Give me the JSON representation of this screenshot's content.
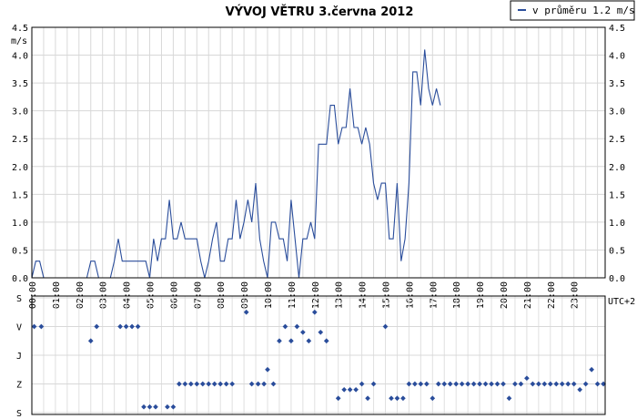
{
  "chart_data": [
    {
      "type": "line",
      "title": "VÝVOJ VĚTRU  3.června 2012",
      "ylabel": "m/s",
      "xlabel": "UTC+2",
      "ylim": [
        0,
        4.5
      ],
      "y_ticks": [
        "0.0",
        "0.5",
        "1.0",
        "1.5",
        "2.0",
        "2.5",
        "3.0",
        "3.5",
        "4.0",
        "4.5"
      ],
      "x_ticks": [
        "00:00",
        "01:00",
        "02:00",
        "03:00",
        "04:00",
        "05:00",
        "06:00",
        "07:00",
        "08:00",
        "09:00",
        "10:00",
        "11:00",
        "12:00",
        "13:00",
        "14:00",
        "15:00",
        "16:00",
        "17:00",
        "18:00",
        "19:00",
        "20:00",
        "21:00",
        "22:00",
        "23:00"
      ],
      "grid": true,
      "legend_position": "top-right",
      "color": "#2a4d9b",
      "series": [
        {
          "name": "v průměru 1.2 m/s",
          "x_step_minutes": 10,
          "values": [
            0.0,
            0.3,
            0.3,
            0.0,
            0.0,
            0.0,
            0.0,
            0.0,
            0.0,
            0.0,
            0.0,
            0.0,
            0.0,
            0.0,
            0.0,
            0.3,
            0.3,
            0.0,
            0.0,
            0.0,
            0.0,
            0.3,
            0.7,
            0.3,
            0.3,
            0.3,
            0.3,
            0.3,
            0.3,
            0.3,
            0.0,
            0.7,
            0.3,
            0.7,
            0.7,
            1.4,
            0.7,
            0.7,
            1.0,
            0.7,
            0.7,
            0.7,
            0.7,
            0.3,
            0.0,
            0.3,
            0.7,
            1.0,
            0.3,
            0.3,
            0.7,
            0.7,
            1.4,
            0.7,
            1.0,
            1.4,
            1.0,
            1.7,
            0.7,
            0.3,
            0.0,
            1.0,
            1.0,
            0.7,
            0.7,
            0.3,
            1.4,
            0.7,
            0.0,
            0.7,
            0.7,
            1.0,
            0.7,
            2.4,
            2.4,
            2.4,
            3.1,
            3.1,
            2.4,
            2.7,
            2.7,
            3.4,
            2.7,
            2.7,
            2.4,
            2.7,
            2.4,
            1.7,
            1.4,
            1.7,
            1.7,
            0.7,
            0.7,
            1.7,
            0.3,
            0.7,
            1.7,
            3.7,
            3.7,
            3.1,
            4.1,
            3.4,
            3.1,
            3.4,
            3.1
          ]
        }
      ]
    },
    {
      "type": "scatter",
      "y_categories": [
        "S",
        "V",
        "J",
        "Z",
        "S"
      ],
      "xlim_hours": [
        0,
        24
      ],
      "color": "#2a4d9b",
      "series": [
        {
          "points": [
            [
              0.1,
              1
            ],
            [
              0.4,
              1
            ],
            [
              2.5,
              1.5
            ],
            [
              2.75,
              1
            ],
            [
              3.75,
              1
            ],
            [
              4.0,
              1
            ],
            [
              4.25,
              1
            ],
            [
              4.5,
              1
            ],
            [
              4.75,
              3.8
            ],
            [
              5.0,
              3.8
            ],
            [
              5.25,
              3.8
            ],
            [
              5.75,
              3.8
            ],
            [
              6.0,
              3.8
            ],
            [
              6.25,
              3
            ],
            [
              6.5,
              3
            ],
            [
              6.75,
              3
            ],
            [
              7.0,
              3
            ],
            [
              7.25,
              3
            ],
            [
              7.5,
              3
            ],
            [
              7.75,
              3
            ],
            [
              8.0,
              3
            ],
            [
              8.25,
              3
            ],
            [
              8.5,
              3
            ],
            [
              9.1,
              0.5
            ],
            [
              9.33,
              3
            ],
            [
              9.6,
              3
            ],
            [
              9.85,
              3
            ],
            [
              10.0,
              2.5
            ],
            [
              10.25,
              3
            ],
            [
              10.5,
              1.5
            ],
            [
              10.75,
              1
            ],
            [
              11.0,
              1.5
            ],
            [
              11.25,
              1
            ],
            [
              11.5,
              1.2
            ],
            [
              11.75,
              1.5
            ],
            [
              12.0,
              0.5
            ],
            [
              12.25,
              1.2
            ],
            [
              12.5,
              1.5
            ],
            [
              13.0,
              3.5
            ],
            [
              13.25,
              3.2
            ],
            [
              13.5,
              3.2
            ],
            [
              13.75,
              3.2
            ],
            [
              14.0,
              3
            ],
            [
              14.25,
              3.5
            ],
            [
              14.5,
              3
            ],
            [
              15.0,
              1
            ],
            [
              15.25,
              3.5
            ],
            [
              15.5,
              3.5
            ],
            [
              15.75,
              3.5
            ],
            [
              16.0,
              3
            ],
            [
              16.25,
              3
            ],
            [
              16.5,
              3
            ],
            [
              16.75,
              3
            ],
            [
              17.0,
              3.5
            ],
            [
              17.25,
              3
            ],
            [
              17.5,
              3
            ],
            [
              17.75,
              3
            ],
            [
              18.0,
              3
            ],
            [
              18.25,
              3
            ],
            [
              18.5,
              3
            ],
            [
              18.75,
              3
            ],
            [
              19.0,
              3
            ],
            [
              19.25,
              3
            ],
            [
              19.5,
              3
            ],
            [
              19.75,
              3
            ],
            [
              20.0,
              3
            ],
            [
              20.25,
              3.5
            ],
            [
              20.5,
              3
            ],
            [
              20.75,
              3
            ],
            [
              21.0,
              2.8
            ],
            [
              21.25,
              3
            ],
            [
              21.5,
              3
            ],
            [
              21.75,
              3
            ],
            [
              22.0,
              3
            ],
            [
              22.25,
              3
            ],
            [
              22.5,
              3
            ],
            [
              22.75,
              3
            ],
            [
              23.0,
              3
            ],
            [
              23.25,
              3.2
            ],
            [
              23.5,
              3
            ],
            [
              23.75,
              2.5
            ],
            [
              24.0,
              3
            ],
            [
              24.25,
              3
            ]
          ]
        }
      ]
    }
  ]
}
